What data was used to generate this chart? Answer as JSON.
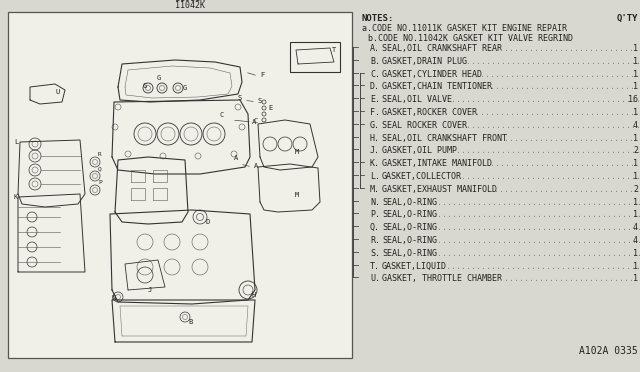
{
  "bg_color": "#d8d8d0",
  "part_codes_top": [
    "11011K",
    "11042K"
  ],
  "notes_label": "NOTES:",
  "qty_label": "Q'TY",
  "note_a": "a.CODE NO.11011K GASKET KIT ENGINE REPAIR",
  "note_b": "b.CODE NO.11042K GASKET KIT VALVE REGRIND",
  "parts": [
    {
      "code": "A",
      "name": "SEAL,OIL CRANKSHAFT REAR",
      "qty": "1",
      "grp_a": true,
      "grp_b": false
    },
    {
      "code": "B",
      "name": "GASKET,DRAIN PLUG",
      "qty": "1",
      "grp_a": true,
      "grp_b": false
    },
    {
      "code": "C",
      "name": "GASKET,CYLINDER HEAD",
      "qty": "1",
      "grp_a": true,
      "grp_b": true
    },
    {
      "code": "D",
      "name": "GASKET,CHAIN TENTIONER",
      "qty": "1",
      "grp_a": true,
      "grp_b": true
    },
    {
      "code": "E",
      "name": "SEAL,OIL VALVE",
      "qty": "16",
      "grp_a": true,
      "grp_b": true
    },
    {
      "code": "F",
      "name": "GASKET,ROCKER COVER",
      "qty": "1",
      "grp_a": true,
      "grp_b": true
    },
    {
      "code": "G",
      "name": "SEAL ROCKER COVER",
      "qty": "4",
      "grp_a": true,
      "grp_b": true
    },
    {
      "code": "H",
      "name": "SEAL,OIL CRANKSHAFT FRONT",
      "qty": "1",
      "grp_a": true,
      "grp_b": false
    },
    {
      "code": "J",
      "name": "GASKET,OIL PUMP",
      "qty": "2",
      "grp_a": true,
      "grp_b": false
    },
    {
      "code": "K",
      "name": "GASKET,INTAKE MANIFOLD",
      "qty": "1",
      "grp_a": true,
      "grp_b": true
    },
    {
      "code": "L",
      "name": "GASKET,COLLECTOR",
      "qty": "1",
      "grp_a": true,
      "grp_b": true
    },
    {
      "code": "M",
      "name": "GASKET,EXHAUST MANIFOLD",
      "qty": "2",
      "grp_a": true,
      "grp_b": true
    },
    {
      "code": "N",
      "name": "SEAL,O-RING",
      "qty": "1",
      "grp_a": true,
      "grp_b": false
    },
    {
      "code": "P",
      "name": "SEAL,O-RING",
      "qty": "1",
      "grp_a": true,
      "grp_b": false
    },
    {
      "code": "Q",
      "name": "SEAL,O-RING",
      "qty": "4",
      "grp_a": true,
      "grp_b": false
    },
    {
      "code": "R",
      "name": "SEAL,O-RING",
      "qty": "4",
      "grp_a": true,
      "grp_b": false
    },
    {
      "code": "S",
      "name": "SEAL,O-RING",
      "qty": "1",
      "grp_a": true,
      "grp_b": false
    },
    {
      "code": "T",
      "name": "GASKET,LIQUID",
      "qty": "1",
      "grp_a": true,
      "grp_b": false
    },
    {
      "code": "U",
      "name": "GASKET, THROTTLE CHAMBER",
      "qty": "1",
      "grp_a": true,
      "grp_b": false
    }
  ],
  "footer_code": "A102A 0335",
  "font_color": "#222222",
  "line_color": "#444444",
  "dot_color": "#888888"
}
